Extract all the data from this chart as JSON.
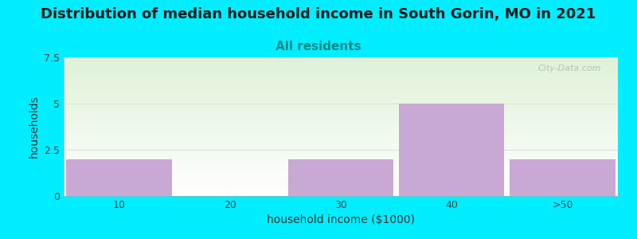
{
  "title": "Distribution of median household income in South Gorin, MO in 2021",
  "subtitle": "All residents",
  "xlabel": "household income ($1000)",
  "ylabel": "households",
  "categories": [
    "10",
    "20",
    "30",
    "40",
    ">50"
  ],
  "values": [
    2,
    0,
    2,
    5,
    2
  ],
  "bar_color": "#c9a8d4",
  "bar_edgecolor": "#c9a8d4",
  "ylim": [
    0,
    7.5
  ],
  "yticks": [
    0,
    2.5,
    5,
    7.5
  ],
  "background_color": "#00eeff",
  "plot_bg_top_left": "#dff2d8",
  "plot_bg_top_right": "#f8fff8",
  "plot_bg_bottom": "#ffffff",
  "title_fontsize": 13,
  "subtitle_fontsize": 11,
  "subtitle_color": "#008888",
  "watermark": "City-Data.com",
  "bar_width": 0.95
}
